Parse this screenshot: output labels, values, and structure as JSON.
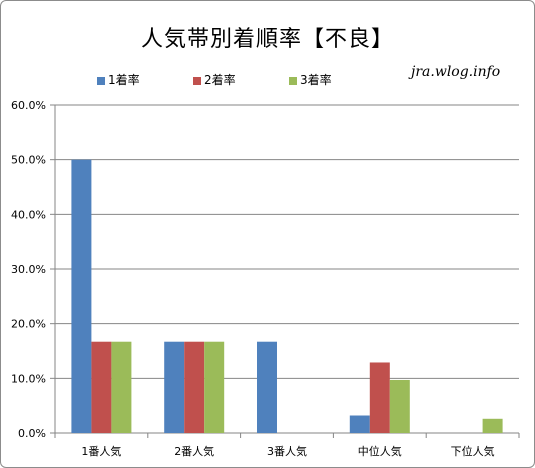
{
  "chart_data": {
    "type": "bar",
    "title": "人気帯別着順率【不良】",
    "categories": [
      "1番人気",
      "2番人気",
      "3番人気",
      "中位人気",
      "下位人気"
    ],
    "series": [
      {
        "name": "1着率",
        "color": "#4f81bd",
        "values": [
          50.0,
          16.7,
          16.7,
          3.2,
          0.0
        ]
      },
      {
        "name": "2着率",
        "color": "#c0504d",
        "values": [
          16.7,
          16.7,
          0.0,
          12.9,
          0.0
        ]
      },
      {
        "name": "3着率",
        "color": "#9bbb59",
        "values": [
          16.7,
          16.7,
          0.0,
          9.7,
          2.6
        ]
      }
    ],
    "y_ticks": [
      "0.0%",
      "10.0%",
      "20.0%",
      "30.0%",
      "40.0%",
      "50.0%",
      "60.0%"
    ],
    "ylim": [
      0,
      60
    ],
    "grid": true,
    "legend_position": "top",
    "xlabel": "",
    "ylabel": ""
  },
  "watermark": "jra.wlog.info"
}
